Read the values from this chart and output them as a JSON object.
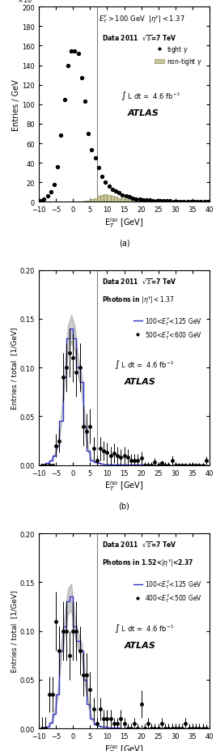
{
  "panel_a": {
    "title": "E$_T^{\\gamma}$>100 GeV  |$\\eta^{\\gamma}$|<1.37",
    "ylabel": "Entries / GeV",
    "xlabel": "E$_T^{iso}$ [GeV]",
    "ylim": [
      0,
      200
    ],
    "ylim_scale": 100,
    "yticks": [
      0,
      20,
      40,
      60,
      80,
      100,
      120,
      140,
      160,
      180,
      200
    ],
    "xlim": [
      -10,
      40
    ],
    "xticks": [
      -10,
      -5,
      0,
      5,
      10,
      15,
      20,
      25,
      30,
      35,
      40
    ],
    "vline": 7,
    "legend_label1": "tight $\\gamma$",
    "legend_label2": "non-tight $\\gamma$",
    "int_lumi": "$\\int$ L dt =  4.6 fb$^{-1}$",
    "atlas_label": "ATLAS",
    "data_label": "Data 2011  $\\sqrt{s}$=7 TeV",
    "tight_x": [
      -9.5,
      -8.5,
      -7.5,
      -6.5,
      -5.5,
      -4.5,
      -3.5,
      -2.5,
      -1.5,
      -0.5,
      0.5,
      1.5,
      2.5,
      3.5,
      4.5,
      5.5,
      6.5,
      7.5,
      8.5,
      9.5,
      10.5,
      11.5,
      12.5,
      13.5,
      14.5,
      15.5,
      16.5,
      17.5,
      18.5,
      19.5,
      20.5,
      21.5,
      22.5,
      23.5,
      24.5,
      25.5,
      26.5,
      27.5,
      28.5,
      29.5,
      30.5,
      31.5,
      32.5,
      33.5,
      34.5,
      35.5,
      36.5,
      37.5,
      38.5,
      39.5
    ],
    "tight_y": [
      1.5,
      2.5,
      6,
      10,
      18,
      36,
      68,
      105,
      140,
      155,
      155,
      152,
      127,
      103,
      70,
      53,
      45,
      35,
      26,
      20,
      16,
      13,
      11,
      9,
      7,
      6,
      5,
      4,
      3,
      3,
      2,
      2,
      2,
      1.5,
      1.5,
      1,
      1,
      0.8,
      0.8,
      0.6,
      0.5,
      0.5,
      0.5,
      0.4,
      0.3,
      0.3,
      0.2,
      0.2,
      0.2,
      0.1
    ],
    "nontight_edges": [
      -10,
      -9,
      -8,
      -7,
      -6,
      -5,
      -4,
      -3,
      -2,
      -1,
      0,
      1,
      2,
      3,
      4,
      5,
      6,
      7,
      8,
      9,
      10,
      11,
      12,
      13,
      14,
      15,
      16,
      17,
      18,
      19,
      20,
      21,
      22,
      23,
      24,
      25,
      26,
      27,
      28,
      29,
      30,
      31,
      32,
      33,
      34,
      35,
      36,
      37,
      38,
      39,
      40
    ],
    "nontight_y": [
      0,
      0,
      0,
      0,
      0,
      0,
      0,
      0,
      0,
      0,
      0.1,
      0.3,
      0.6,
      1.0,
      1.5,
      2.5,
      4,
      6,
      7,
      7.5,
      7,
      6,
      5,
      4,
      3.5,
      3,
      2.5,
      2,
      1.8,
      1.5,
      1.2,
      1.0,
      0.9,
      0.8,
      0.7,
      0.6,
      0.5,
      0.4,
      0.35,
      0.3,
      0.25,
      0.2,
      0.18,
      0.15,
      0.12,
      0.1,
      0.09,
      0.08,
      0.07,
      0.06
    ]
  },
  "panel_b": {
    "title": "Data 2011  $\\sqrt{s}$=7 TeV",
    "subtitle": "Photons in |$\\eta^{\\gamma}$|<1.37",
    "ylabel": "Entries / total  [1/GeV]",
    "xlabel": "E$_T^{iso}$ [GeV]",
    "ylim": [
      0,
      0.2
    ],
    "xlim": [
      -10,
      40
    ],
    "xticks": [
      -10,
      -5,
      0,
      5,
      10,
      15,
      20,
      25,
      30,
      35,
      40
    ],
    "yticks": [
      0,
      0.05,
      0.1,
      0.15,
      0.2
    ],
    "vline": 7,
    "line_label": "100<E$_T^{\\gamma}$<125 GeV",
    "dot_label": "500<E$_T^{\\gamma}$<600 GeV",
    "int_lumi": "$\\int$ L dt =  4.6 fb$^{-1}$",
    "atlas_label": "ATLAS",
    "hist_edges": [
      -10,
      -9,
      -8,
      -7,
      -6,
      -5,
      -4,
      -3,
      -2,
      -1,
      0,
      1,
      2,
      3,
      4,
      5,
      6,
      7,
      8,
      9,
      10,
      11,
      12,
      13,
      14,
      15,
      16,
      17,
      18,
      19,
      20,
      21,
      22,
      23,
      24,
      25,
      26,
      27,
      28,
      29,
      30,
      31,
      32,
      33,
      34,
      35,
      36,
      37,
      38,
      39,
      40
    ],
    "hist_y": [
      0,
      0.001,
      0.002,
      0.005,
      0.01,
      0.02,
      0.045,
      0.09,
      0.13,
      0.14,
      0.13,
      0.1,
      0.085,
      0.04,
      0.015,
      0.005,
      0.003,
      0.002,
      0.0015,
      0.001,
      0.001,
      0.0008,
      0.0007,
      0.0006,
      0.0005,
      0.0004,
      0.0004,
      0.0003,
      0.0003,
      0.0002,
      0.0002,
      0.0002,
      0.0001,
      0.0001,
      0.0001,
      0.0001,
      0.0001,
      0.0001,
      8e-05,
      7e-05,
      6e-05,
      5e-05,
      5e-05,
      4e-05,
      3e-05,
      3e-05,
      2e-05,
      2e-05,
      2e-05,
      1e-05
    ],
    "dot_x": [
      -9,
      -8,
      -7,
      -6,
      -5,
      -4,
      -3,
      -2,
      -1,
      0,
      1,
      2,
      3,
      4,
      5,
      6,
      7,
      8,
      9,
      10,
      11,
      12,
      13,
      14,
      15,
      16,
      17,
      18,
      19,
      20,
      21,
      22,
      23,
      24,
      25,
      26,
      27,
      28,
      29,
      30,
      31,
      32,
      33,
      34,
      35,
      36,
      37,
      38,
      39
    ],
    "dot_y": [
      0,
      0,
      0,
      0,
      0.02,
      0.025,
      0.09,
      0.1,
      0.115,
      0.11,
      0.095,
      0.1,
      0.04,
      0.035,
      0.04,
      0.017,
      0.005,
      0.017,
      0.015,
      0.013,
      0.01,
      0.012,
      0.01,
      0.008,
      0.01,
      0.008,
      0.005,
      0.005,
      0.005,
      0.007,
      0,
      0,
      0,
      0.003,
      0,
      0.002,
      0,
      0,
      0.005,
      0,
      0,
      0,
      0,
      0,
      0,
      0,
      0,
      0,
      0.005
    ],
    "dot_yerr": [
      0,
      0,
      0,
      0,
      0.012,
      0.012,
      0.025,
      0.025,
      0.025,
      0.025,
      0.025,
      0.025,
      0.02,
      0.018,
      0.018,
      0.012,
      0.005,
      0.012,
      0.01,
      0.01,
      0.009,
      0.01,
      0.009,
      0.008,
      0.009,
      0.008,
      0.006,
      0.006,
      0.006,
      0.007,
      0.003,
      0.003,
      0.003,
      0.004,
      0.003,
      0.003,
      0.003,
      0.003,
      0.005,
      0.003,
      0.002,
      0.002,
      0.002,
      0.002,
      0.002,
      0.002,
      0.002,
      0.002,
      0.004
    ]
  },
  "panel_c": {
    "title": "Data 2011  $\\sqrt{s}$=7 TeV",
    "subtitle": "Photons in 1.52<|$\\eta^{\\gamma}$|<2.37",
    "ylabel": "Entries / total  [1/GeV]",
    "xlabel": "E$_T^{iso}$ [GeV]",
    "ylim": [
      0,
      0.2
    ],
    "xlim": [
      -10,
      40
    ],
    "xticks": [
      -10,
      -5,
      0,
      5,
      10,
      15,
      20,
      25,
      30,
      35,
      40
    ],
    "yticks": [
      0,
      0.05,
      0.1,
      0.15,
      0.2
    ],
    "vline": 7,
    "line_label": "100<E$_T^{\\gamma}$<125 GeV",
    "dot_label": "400<E$_T^{\\gamma}$<500 GeV",
    "int_lumi": "$\\int$ L dt =  4.6 fb$^{-1}$",
    "atlas_label": "ATLAS",
    "hist_edges": [
      -10,
      -9,
      -8,
      -7,
      -6,
      -5,
      -4,
      -3,
      -2,
      -1,
      0,
      1,
      2,
      3,
      4,
      5,
      6,
      7,
      8,
      9,
      10,
      11,
      12,
      13,
      14,
      15,
      16,
      17,
      18,
      19,
      20,
      21,
      22,
      23,
      24,
      25,
      26,
      27,
      28,
      29,
      30,
      31,
      32,
      33,
      34,
      35,
      36,
      37,
      38,
      39,
      40
    ],
    "hist_y": [
      0,
      0.001,
      0.002,
      0.006,
      0.015,
      0.035,
      0.08,
      0.105,
      0.13,
      0.135,
      0.105,
      0.09,
      0.08,
      0.05,
      0.025,
      0.01,
      0.004,
      0.003,
      0.002,
      0.0015,
      0.001,
      0.0008,
      0.0007,
      0.0006,
      0.0005,
      0.0004,
      0.0004,
      0.0003,
      0.0003,
      0.0002,
      0.0002,
      0.0002,
      0.0001,
      0.0001,
      0.0001,
      0.0001,
      0.0001,
      0.0001,
      8e-05,
      7e-05,
      6e-05,
      5e-05,
      5e-05,
      4e-05,
      3e-05,
      3e-05,
      2e-05,
      2e-05,
      2e-05,
      1e-05
    ],
    "dot_x": [
      -9,
      -8,
      -7,
      -6,
      -5,
      -4,
      -3,
      -2,
      -1,
      0,
      1,
      2,
      3,
      4,
      5,
      6,
      7,
      8,
      9,
      10,
      11,
      12,
      13,
      14,
      15,
      16,
      17,
      18,
      19,
      20,
      21,
      22,
      23,
      24,
      25,
      26,
      27,
      28,
      29,
      30,
      31,
      32,
      33,
      34,
      35,
      36,
      37,
      38,
      39
    ],
    "dot_y": [
      0,
      0,
      0.035,
      0.035,
      0.11,
      0.08,
      0.1,
      0.1,
      0.075,
      0.1,
      0.1,
      0.08,
      0.055,
      0.055,
      0.04,
      0.02,
      0.005,
      0.02,
      0.01,
      0.01,
      0.01,
      0.005,
      0.005,
      0.01,
      0.005,
      0,
      0,
      0.005,
      0,
      0.025,
      0,
      0.005,
      0,
      0,
      0,
      0.005,
      0,
      0,
      0,
      0,
      0,
      0,
      0.005,
      0,
      0,
      0,
      0,
      0,
      0
    ],
    "dot_yerr": [
      0.012,
      0.012,
      0.018,
      0.018,
      0.03,
      0.025,
      0.03,
      0.03,
      0.025,
      0.03,
      0.03,
      0.025,
      0.022,
      0.022,
      0.018,
      0.012,
      0.006,
      0.012,
      0.009,
      0.009,
      0.009,
      0.006,
      0.006,
      0.009,
      0.006,
      0.005,
      0.005,
      0.006,
      0.005,
      0.014,
      0.005,
      0.006,
      0.005,
      0.005,
      0.005,
      0.006,
      0.005,
      0.005,
      0.005,
      0.005,
      0.005,
      0.005,
      0.006,
      0.005,
      0.005,
      0.005,
      0.005,
      0.005,
      0.004
    ]
  }
}
